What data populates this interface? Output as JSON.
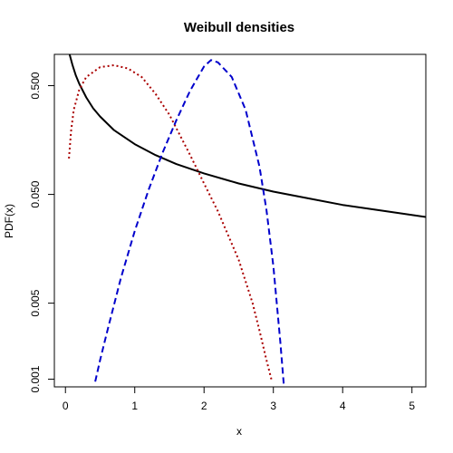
{
  "chart_data": {
    "type": "line",
    "title": "Weibull densities",
    "xlabel": "x",
    "ylabel": "PDF(x)",
    "xlim": [
      -0.16,
      5.2
    ],
    "ylim": [
      0.00085,
      0.97
    ],
    "ylog": true,
    "grid": false,
    "x_ticks": [
      0,
      1,
      2,
      3,
      4,
      5
    ],
    "x_tick_labels": [
      "0",
      "1",
      "2",
      "3",
      "4",
      "5"
    ],
    "y_ticks": [
      0.001,
      0.005,
      0.05,
      0.5
    ],
    "y_tick_labels": [
      "0.001",
      "0.005",
      "0.050",
      "0.500"
    ],
    "series": [
      {
        "color": "#000000",
        "dash": "solid",
        "x": [
          0.06,
          0.1,
          0.15,
          0.2,
          0.3,
          0.4,
          0.5,
          0.7,
          1.0,
          1.3,
          1.6,
          2.0,
          2.5,
          3.0,
          3.5,
          4.0,
          4.5,
          5.2
        ],
        "y": [
          0.97,
          0.78,
          0.62,
          0.52,
          0.39,
          0.31,
          0.26,
          0.195,
          0.145,
          0.115,
          0.095,
          0.078,
          0.063,
          0.053,
          0.046,
          0.04,
          0.036,
          0.031
        ]
      },
      {
        "color": "#aa0000",
        "dash": "dotted",
        "x": [
          0.05,
          0.08,
          0.12,
          0.2,
          0.3,
          0.5,
          0.7,
          0.9,
          1.1,
          1.3,
          1.5,
          1.8,
          2.0,
          2.2,
          2.5,
          2.7,
          2.8,
          2.9,
          2.98
        ],
        "y": [
          0.107,
          0.19,
          0.3,
          0.46,
          0.6,
          0.74,
          0.77,
          0.72,
          0.6,
          0.42,
          0.27,
          0.115,
          0.063,
          0.035,
          0.0125,
          0.005,
          0.0028,
          0.0015,
          0.00095
        ]
      },
      {
        "color": "#0000cc",
        "dash": "dashed",
        "x": [
          0.43,
          0.5,
          0.6,
          0.8,
          1.0,
          1.2,
          1.4,
          1.6,
          1.8,
          2.0,
          2.1,
          2.2,
          2.4,
          2.6,
          2.8,
          2.9,
          3.0,
          3.1,
          3.15
        ],
        "y": [
          0.00095,
          0.0015,
          0.0027,
          0.0085,
          0.023,
          0.055,
          0.12,
          0.24,
          0.45,
          0.75,
          0.86,
          0.82,
          0.6,
          0.3,
          0.09,
          0.036,
          0.011,
          0.0022,
          0.0009
        ]
      }
    ]
  }
}
